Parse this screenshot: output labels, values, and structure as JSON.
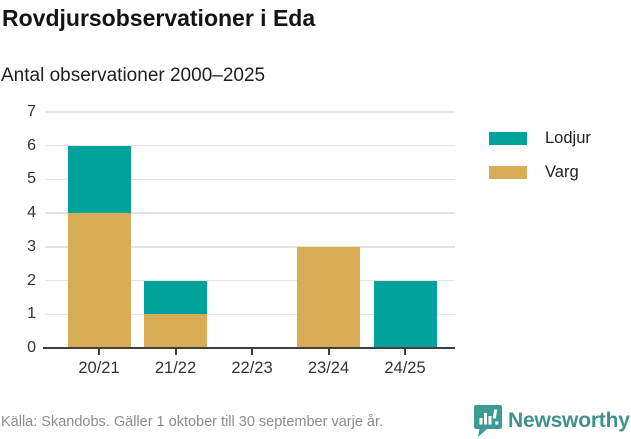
{
  "title": "Rovdjursobservationer i Eda",
  "subtitle": "Antal observationer 2000–2025",
  "source": "Källa: Skandobs. Gäller 1 oktober till 30 september varje år.",
  "brand": {
    "name": "Newsworthy",
    "color": "#41918C"
  },
  "colors": {
    "lodjur": "#00A39B",
    "varg": "#D8AB55",
    "gridline": "#e4e4e4",
    "axis": "#3e3e3e",
    "axis_text": "#333333",
    "source_text": "#8c8c8c"
  },
  "chart_data": {
    "type": "bar",
    "stacked": true,
    "title": "Rovdjursobservationer i Eda",
    "subtitle": "Antal observationer 2000–2025",
    "xlabel": "",
    "ylabel": "",
    "categories": [
      "20/21",
      "21/22",
      "22/23",
      "23/24",
      "24/25"
    ],
    "series": [
      {
        "name": "Varg",
        "color": "#D8AB55",
        "values": [
          4,
          1,
          0,
          3,
          0
        ]
      },
      {
        "name": "Lodjur",
        "color": "#00A39B",
        "values": [
          2,
          1,
          0,
          0,
          2
        ]
      }
    ],
    "legend_entries": [
      "Lodjur",
      "Varg"
    ],
    "legend_position": "right",
    "ylim": [
      0,
      7
    ],
    "yticks": [
      0,
      1,
      2,
      3,
      4,
      5,
      6,
      7
    ],
    "grid": true
  }
}
